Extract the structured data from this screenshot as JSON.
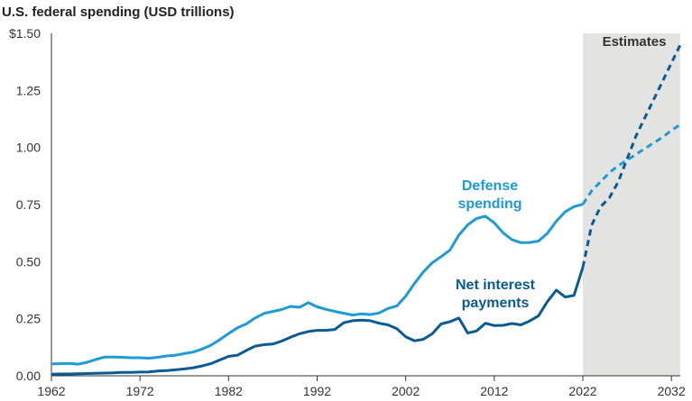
{
  "chart_data": {
    "type": "line",
    "title": "U.S. federal spending (USD trillions)",
    "xlabel": "",
    "ylabel": "",
    "xlim": [
      1962,
      2033
    ],
    "ylim": [
      0,
      1.5
    ],
    "x_ticks": [
      1962,
      1972,
      1982,
      1992,
      2002,
      2012,
      2022,
      2032
    ],
    "x_tick_labels": [
      "1962",
      "1972",
      "1982",
      "1992",
      "2002",
      "2012",
      "2022",
      "2032"
    ],
    "y_ticks": [
      0,
      0.25,
      0.5,
      0.75,
      1.0,
      1.25,
      1.5
    ],
    "y_tick_labels": [
      "0.00",
      "0.25",
      "0.50",
      "0.75",
      "1.00",
      "1.25",
      "$1.50"
    ],
    "estimates_region": {
      "label": "Estimates",
      "x_start": 2022,
      "x_end": 2033,
      "color": "#e3e3e1"
    },
    "series": [
      {
        "name": "Defense spending",
        "label_lines": [
          "Defense",
          "spending"
        ],
        "color": "#1e9ad6",
        "x": [
          1962,
          1963,
          1964,
          1965,
          1966,
          1967,
          1968,
          1969,
          1970,
          1971,
          1972,
          1973,
          1974,
          1975,
          1976,
          1977,
          1978,
          1979,
          1980,
          1981,
          1982,
          1983,
          1984,
          1985,
          1986,
          1987,
          1988,
          1989,
          1990,
          1991,
          1992,
          1993,
          1994,
          1995,
          1996,
          1997,
          1998,
          1999,
          2000,
          2001,
          2002,
          2003,
          2004,
          2005,
          2006,
          2007,
          2008,
          2009,
          2010,
          2011,
          2012,
          2013,
          2014,
          2015,
          2016,
          2017,
          2018,
          2019,
          2020,
          2021,
          2022
        ],
        "values": [
          0.052,
          0.053,
          0.054,
          0.051,
          0.059,
          0.071,
          0.082,
          0.082,
          0.081,
          0.079,
          0.079,
          0.077,
          0.081,
          0.087,
          0.09,
          0.097,
          0.104,
          0.117,
          0.134,
          0.158,
          0.185,
          0.21,
          0.227,
          0.253,
          0.273,
          0.282,
          0.29,
          0.304,
          0.3,
          0.32,
          0.302,
          0.291,
          0.282,
          0.274,
          0.266,
          0.271,
          0.268,
          0.275,
          0.295,
          0.306,
          0.349,
          0.405,
          0.455,
          0.495,
          0.522,
          0.551,
          0.616,
          0.661,
          0.689,
          0.699,
          0.67,
          0.626,
          0.596,
          0.583,
          0.584,
          0.59,
          0.624,
          0.677,
          0.718,
          0.741,
          0.751
        ]
      },
      {
        "name": "Defense spending (estimate)",
        "color": "#1e9ad6",
        "dashed": true,
        "x": [
          2022,
          2023,
          2024,
          2025,
          2026,
          2027,
          2028,
          2029,
          2030,
          2031,
          2032,
          2033
        ],
        "values": [
          0.751,
          0.81,
          0.85,
          0.89,
          0.92,
          0.945,
          0.97,
          0.995,
          1.02,
          1.045,
          1.075,
          1.1
        ]
      },
      {
        "name": "Net interest payments",
        "label_lines": [
          "Net interest",
          "payments"
        ],
        "color": "#0a5a94",
        "x": [
          1962,
          1963,
          1964,
          1965,
          1966,
          1967,
          1968,
          1969,
          1970,
          1971,
          1972,
          1973,
          1974,
          1975,
          1976,
          1977,
          1978,
          1979,
          1980,
          1981,
          1982,
          1983,
          1984,
          1985,
          1986,
          1987,
          1988,
          1989,
          1990,
          1991,
          1992,
          1993,
          1994,
          1995,
          1996,
          1997,
          1998,
          1999,
          2000,
          2001,
          2002,
          2003,
          2004,
          2005,
          2006,
          2007,
          2008,
          2009,
          2010,
          2011,
          2012,
          2013,
          2014,
          2015,
          2016,
          2017,
          2018,
          2019,
          2020,
          2021,
          2022
        ],
        "values": [
          0.007,
          0.008,
          0.008,
          0.009,
          0.01,
          0.011,
          0.012,
          0.013,
          0.015,
          0.015,
          0.016,
          0.017,
          0.021,
          0.023,
          0.026,
          0.03,
          0.035,
          0.043,
          0.053,
          0.069,
          0.085,
          0.09,
          0.111,
          0.13,
          0.136,
          0.139,
          0.152,
          0.169,
          0.184,
          0.194,
          0.199,
          0.199,
          0.203,
          0.232,
          0.241,
          0.244,
          0.241,
          0.23,
          0.223,
          0.206,
          0.171,
          0.153,
          0.16,
          0.184,
          0.227,
          0.237,
          0.253,
          0.187,
          0.196,
          0.23,
          0.22,
          0.221,
          0.229,
          0.223,
          0.24,
          0.263,
          0.325,
          0.375,
          0.345,
          0.352,
          0.475
        ]
      },
      {
        "name": "Net interest payments (estimate)",
        "color": "#0a5a94",
        "dashed": true,
        "x": [
          2022,
          2023,
          2024,
          2025,
          2026,
          2027,
          2028,
          2029,
          2030,
          2031,
          2032,
          2033
        ],
        "values": [
          0.475,
          0.66,
          0.74,
          0.78,
          0.85,
          0.95,
          1.05,
          1.13,
          1.21,
          1.29,
          1.37,
          1.45
        ]
      }
    ]
  }
}
